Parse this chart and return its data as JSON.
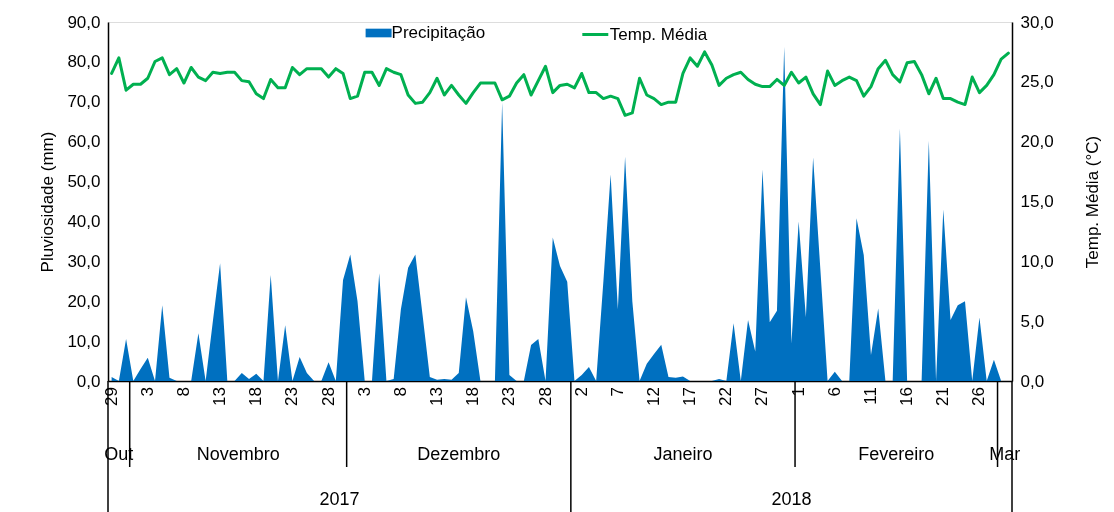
{
  "chart_data": {
    "type": "area",
    "ylabel": "Pluviosidade (mm)",
    "y2label": "Temp. Média (°C)",
    "x": [
      "2017-10-29",
      "2017-10-30",
      "2017-10-31",
      "2017-11-01",
      "2017-11-02",
      "2017-11-03",
      "2017-11-04",
      "2017-11-05",
      "2017-11-06",
      "2017-11-07",
      "2017-11-08",
      "2017-11-09",
      "2017-11-10",
      "2017-11-11",
      "2017-11-12",
      "2017-11-13",
      "2017-11-14",
      "2017-11-15",
      "2017-11-16",
      "2017-11-17",
      "2017-11-18",
      "2017-11-19",
      "2017-11-20",
      "2017-11-21",
      "2017-11-22",
      "2017-11-23",
      "2017-11-24",
      "2017-11-25",
      "2017-11-26",
      "2017-11-27",
      "2017-11-28",
      "2017-11-29",
      "2017-11-30",
      "2017-12-01",
      "2017-12-02",
      "2017-12-03",
      "2017-12-04",
      "2017-12-05",
      "2017-12-06",
      "2017-12-07",
      "2017-12-08",
      "2017-12-09",
      "2017-12-10",
      "2017-12-11",
      "2017-12-12",
      "2017-12-13",
      "2017-12-14",
      "2017-12-15",
      "2017-12-16",
      "2017-12-17",
      "2017-12-18",
      "2017-12-19",
      "2017-12-20",
      "2017-12-21",
      "2017-12-22",
      "2017-12-23",
      "2017-12-24",
      "2017-12-25",
      "2017-12-26",
      "2017-12-27",
      "2017-12-28",
      "2017-12-29",
      "2017-12-30",
      "2017-12-31",
      "2018-01-01",
      "2018-01-02",
      "2018-01-03",
      "2018-01-04",
      "2018-01-05",
      "2018-01-06",
      "2018-01-07",
      "2018-01-08",
      "2018-01-09",
      "2018-01-10",
      "2018-01-11",
      "2018-01-12",
      "2018-01-13",
      "2018-01-14",
      "2018-01-15",
      "2018-01-16",
      "2018-01-17",
      "2018-01-18",
      "2018-01-19",
      "2018-01-20",
      "2018-01-21",
      "2018-01-22",
      "2018-01-23",
      "2018-01-24",
      "2018-01-25",
      "2018-01-26",
      "2018-01-27",
      "2018-01-28",
      "2018-01-29",
      "2018-01-30",
      "2018-01-31",
      "2018-02-01",
      "2018-02-02",
      "2018-02-03",
      "2018-02-04",
      "2018-02-05",
      "2018-02-06",
      "2018-02-07",
      "2018-02-08",
      "2018-02-09",
      "2018-02-10",
      "2018-02-11",
      "2018-02-12",
      "2018-02-13",
      "2018-02-14",
      "2018-02-15",
      "2018-02-16",
      "2018-02-17",
      "2018-02-18",
      "2018-02-19",
      "2018-02-20",
      "2018-02-21",
      "2018-02-22",
      "2018-02-23",
      "2018-02-24",
      "2018-02-25",
      "2018-02-26",
      "2018-02-27",
      "2018-02-28",
      "2018-03-01",
      "2018-03-02"
    ],
    "xlim": [
      "2017-10-28T12:00",
      "2018-03-02T12:00"
    ],
    "xticks": [
      {
        "value": "2017-10-29",
        "label": "29"
      },
      {
        "value": "2017-11-03",
        "label": "3"
      },
      {
        "value": "2017-11-08",
        "label": "8"
      },
      {
        "value": "2017-11-13",
        "label": "13"
      },
      {
        "value": "2017-11-18",
        "label": "18"
      },
      {
        "value": "2017-11-23",
        "label": "23"
      },
      {
        "value": "2017-11-28",
        "label": "28"
      },
      {
        "value": "2017-12-03",
        "label": "3"
      },
      {
        "value": "2017-12-08",
        "label": "8"
      },
      {
        "value": "2017-12-13",
        "label": "13"
      },
      {
        "value": "2017-12-18",
        "label": "18"
      },
      {
        "value": "2017-12-23",
        "label": "23"
      },
      {
        "value": "2017-12-28",
        "label": "28"
      },
      {
        "value": "2018-01-02",
        "label": "2"
      },
      {
        "value": "2018-01-07",
        "label": "7"
      },
      {
        "value": "2018-01-12",
        "label": "12"
      },
      {
        "value": "2018-01-17",
        "label": "17"
      },
      {
        "value": "2018-01-22",
        "label": "22"
      },
      {
        "value": "2018-01-27",
        "label": "27"
      },
      {
        "value": "2018-02-01",
        "label": "1"
      },
      {
        "value": "2018-02-06",
        "label": "6"
      },
      {
        "value": "2018-02-11",
        "label": "11"
      },
      {
        "value": "2018-02-16",
        "label": "16"
      },
      {
        "value": "2018-02-21",
        "label": "21"
      },
      {
        "value": "2018-02-26",
        "label": "26"
      }
    ],
    "ylim": [
      0,
      90
    ],
    "yticks": [
      {
        "value": 0,
        "label": "0,0"
      },
      {
        "value": 10,
        "label": "10,0"
      },
      {
        "value": 20,
        "label": "20,0"
      },
      {
        "value": 30,
        "label": "30,0"
      },
      {
        "value": 40,
        "label": "40,0"
      },
      {
        "value": 50,
        "label": "50,0"
      },
      {
        "value": 60,
        "label": "60,0"
      },
      {
        "value": 70,
        "label": "70,0"
      },
      {
        "value": 80,
        "label": "80,0"
      },
      {
        "value": 90,
        "label": "90,0"
      }
    ],
    "y2lim": [
      0,
      30
    ],
    "y2ticks": [
      {
        "value": 0,
        "label": "0,0"
      },
      {
        "value": 5,
        "label": "5,0"
      },
      {
        "value": 10,
        "label": "10,0"
      },
      {
        "value": 15,
        "label": "15,0"
      },
      {
        "value": 20,
        "label": "20,0"
      },
      {
        "value": 25,
        "label": "25,0"
      },
      {
        "value": 30,
        "label": "30,0"
      }
    ],
    "grid": false,
    "legend": "top",
    "annotations": [
      "Out",
      "Novembro",
      "Dezembro",
      "Janeiro",
      "Fevereiro",
      "Mar",
      "2017",
      "2018"
    ],
    "series": [
      {
        "name": "Precipitação",
        "type": "area",
        "color": "#0070c0",
        "values": [
          1,
          0,
          10.5,
          0,
          3,
          5.8,
          0,
          19,
          0.8,
          0,
          0,
          0,
          12,
          0,
          15,
          29.5,
          0,
          0,
          2,
          0.5,
          1.8,
          0,
          26.6,
          0,
          14,
          0,
          6,
          2,
          0,
          0,
          4.7,
          0,
          25.3,
          31.7,
          20,
          0,
          0,
          27,
          0,
          0.5,
          18,
          28.4,
          31.7,
          16.5,
          1,
          0.3,
          0.5,
          0.3,
          2,
          21,
          12.5,
          0,
          0,
          0,
          69.8,
          1.5,
          0,
          0,
          9,
          10.5,
          0,
          36,
          28.8,
          24.9,
          0,
          1.5,
          3.5,
          0,
          25,
          51.8,
          18,
          56.2,
          20,
          0,
          4.3,
          6.8,
          9.1,
          1,
          0.8,
          1.1,
          0,
          0,
          0,
          0,
          0.5,
          0,
          14.5,
          0,
          15.3,
          7.4,
          53,
          14.7,
          17.6,
          83.8,
          9.4,
          40,
          16,
          56,
          28,
          0,
          2.3,
          0,
          0,
          40.8,
          31.6,
          6.5,
          18.2,
          0,
          0,
          63.3,
          0,
          0,
          0,
          60.2,
          0,
          43,
          15.3,
          19,
          20,
          0,
          15.9,
          0,
          5.3,
          0,
          0
        ]
      },
      {
        "name": "Temp. Média",
        "type": "line",
        "axis": "y2",
        "color": "#00b050",
        "values": [
          25.7,
          27.0,
          24.3,
          24.8,
          24.8,
          25.3,
          26.7,
          27.0,
          25.6,
          26.1,
          24.9,
          26.2,
          25.4,
          25.1,
          25.8,
          25.7,
          25.8,
          25.8,
          25.1,
          25.0,
          24.0,
          23.6,
          25.2,
          24.5,
          24.5,
          26.2,
          25.6,
          26.1,
          26.1,
          26.1,
          25.4,
          26.1,
          25.7,
          23.6,
          23.8,
          25.8,
          25.8,
          24.7,
          26.1,
          25.8,
          25.6,
          23.9,
          23.2,
          23.3,
          24.1,
          25.3,
          23.9,
          24.7,
          23.9,
          23.2,
          24.1,
          24.9,
          24.9,
          24.9,
          23.5,
          23.8,
          24.9,
          25.6,
          23.9,
          25.1,
          26.3,
          24.1,
          24.7,
          24.8,
          24.5,
          25.7,
          24.1,
          24.1,
          23.6,
          23.8,
          23.6,
          22.2,
          22.4,
          25.3,
          23.9,
          23.6,
          23.1,
          23.3,
          23.3,
          25.7,
          27.0,
          26.3,
          27.5,
          26.4,
          24.7,
          25.3,
          25.6,
          25.8,
          25.2,
          24.8,
          24.6,
          24.6,
          25.2,
          24.7,
          25.8,
          24.9,
          25.4,
          24.0,
          23.1,
          25.9,
          24.7,
          25.1,
          25.4,
          25.1,
          23.8,
          24.6,
          26.1,
          26.8,
          25.6,
          25.0,
          26.6,
          26.7,
          25.6,
          24.0,
          25.3,
          23.6,
          23.6,
          23.3,
          23.1,
          25.4,
          24.1,
          24.7,
          25.6,
          26.9,
          27.4
        ]
      }
    ]
  }
}
